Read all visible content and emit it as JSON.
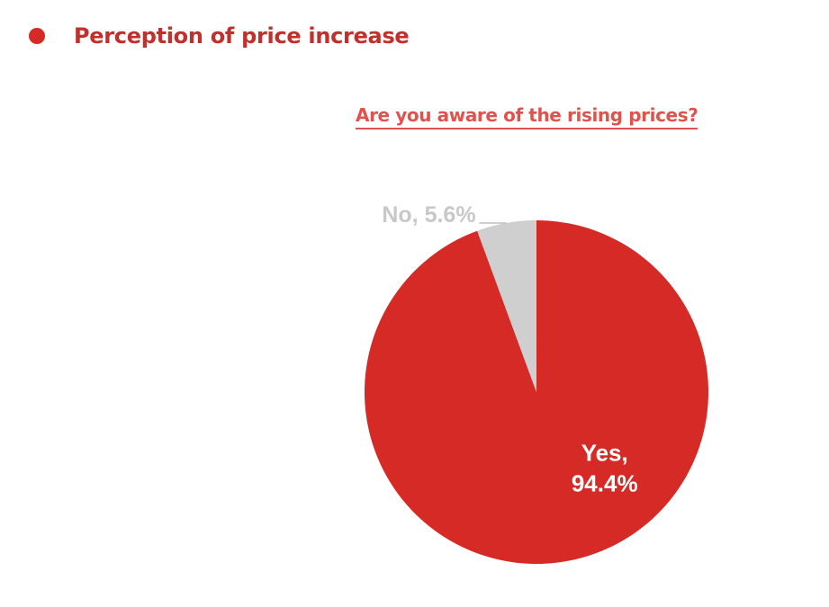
{
  "header": {
    "title": "Perception of price increase"
  },
  "chart_data": {
    "type": "pie",
    "title": "Are you aware of the rising prices?",
    "slices": [
      {
        "label": "Yes",
        "value": 94.4,
        "display": [
          "Yes,",
          "94.4%"
        ],
        "color": "#d52a26",
        "text_color": "#ffffff",
        "label_position": "inside"
      },
      {
        "label": "No",
        "value": 5.6,
        "display": [
          "No, 5.6%"
        ],
        "color": "#d0cfcf",
        "text_color": "#c8c8c8",
        "label_position": "outside-top-left"
      }
    ],
    "start_angle": "12-o'clock",
    "direction": "clockwise"
  }
}
